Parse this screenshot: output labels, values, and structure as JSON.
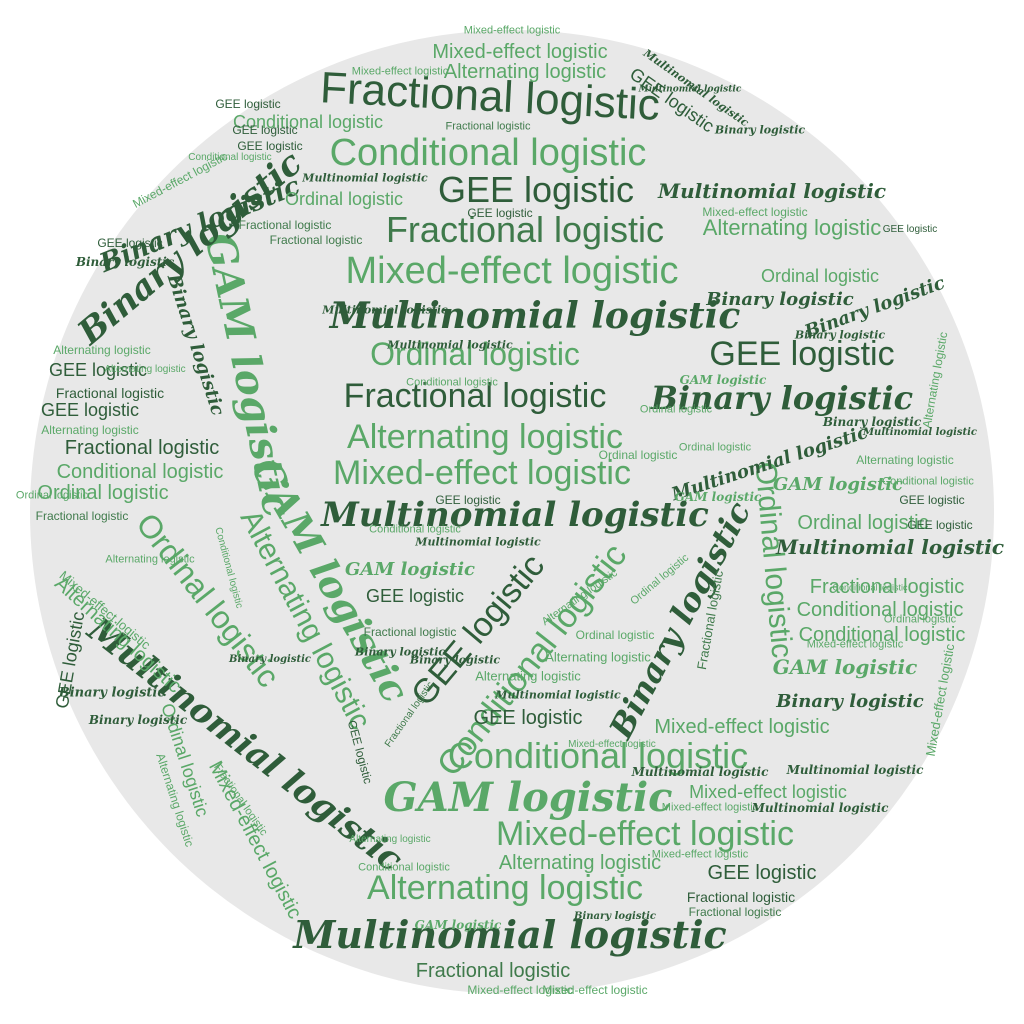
{
  "cloud": {
    "background": "#e8e8e8",
    "colors": {
      "dark": "#2f5d3a",
      "mid": "#3f7a4b",
      "light": "#5aa868"
    },
    "words": [
      "Fractional logistic",
      "Conditional logistic",
      "GEE logistic",
      "Fractional logistic",
      "Mixed-effect logistic",
      "Multinomial logistic",
      "Ordinal logistic",
      "GEE logistic",
      "Fractional logistic",
      "Binary logistic",
      "Alternating logistic",
      "Mixed-effect logistic",
      "Multinomial logistic",
      "Conditional logistic",
      "GAM logistic",
      "Mixed-effect logistic",
      "Alternating logistic",
      "Multinomial logistic",
      "Fractional logistic",
      "GAM logistic",
      "Binary logistic",
      "Multinomial logistic",
      "Ordinal logistic",
      "Alternating logistic",
      "GAM logistic",
      "Binary logistic",
      "GEE logistic",
      "Conditional logistic",
      "Ordinal logistic",
      "Mixed-effect logistic",
      "Alternating logistic",
      "Mixed-effect logistic",
      "Alternating logistic",
      "Multinomial logistic",
      "GEE logistic",
      "Binary logistic",
      "Fractional logistic",
      "Conditional logistic",
      "Conditional logistic",
      "Ordinal logistic",
      "Multinomial logistic",
      "GAM logistic",
      "Binary logistic",
      "Mixed-effect logistic",
      "Mixed-effect logistic",
      "GEE logistic",
      "GEE logistic",
      "Fractional logistic",
      "Conditional logistic",
      "Ordinal logistic",
      "Fractional logistic",
      "Alternating logistic",
      "Mixed-effect logistic",
      "Binary logistic",
      "Binary logistic",
      "Multinomial logistic",
      "Alternating logistic",
      "Conditional logistic",
      "GEE logistic",
      "GEE logistic",
      "Multinomial logistic",
      "Binary logistic",
      "Binary logistic",
      "Ordinal logistic",
      "Alternating logistic",
      "Mixed-effect logistic",
      "Alternating logistic",
      "Fractional logistic",
      "Mixed-effect logistic",
      "Ordinal logistic",
      "Alternating logistic",
      "Mixed-effect logistic",
      "Mixed-effect logistic",
      "Conditional logistic",
      "GEE logistic",
      "Multinomial logistic",
      "GAM logistic",
      "Ordinal logistic",
      "Fractional logistic",
      "Fractional logistic",
      "GEE logistic",
      "Mixed-effect logistic",
      "Binary logistic",
      "Multinomial logistic",
      "GEE logistic",
      "Ordinal logistic",
      "Binary logistic",
      "Conditional logistic",
      "Fractional logistic",
      "Alternating logistic",
      "GEE logistic",
      "Fractional logistic",
      "Ordinal logistic",
      "GEE logistic",
      "Multinomial logistic",
      "Mixed-effect logistic",
      "Alternating logistic",
      "Alternating logistic",
      "Fractional logistic",
      "Mixed-effect logistic",
      "Mixed-effect logistic",
      "GEE logistic",
      "Binary logistic",
      "Multinomial logistic",
      "Binary logistic",
      "Ordinal logistic",
      "Ordinal logistic",
      "Alternating logistic",
      "Alternating logistic",
      "GEE logistic",
      "GAM logistic",
      "Conditional logistic",
      "Binary logistic",
      "Binary logistic",
      "Ordinal logistic",
      "Multinomial logistic",
      "Mixed-effect logistic",
      "Fractional logistic",
      "Conditional logistic",
      "GEE logistic",
      "Ordinal logistic",
      "GEE logistic",
      "GAM logistic",
      "GAM logistic",
      "Mixed-effect logistic",
      "Alternating logistic",
      "Binary logistic",
      "GEE logistic",
      "Fractional logistic",
      "Conditional logistic",
      "Multinomial logistic",
      "Binary logistic",
      "Multinomial logistic",
      "Multinomial logistic",
      "Multinomial logistic",
      "Ordinal logistic",
      "GAM logistic",
      "Multinomial logistic",
      "Fractional logistic",
      "Conditional logistic",
      "Binary logistic",
      "GEE logistic",
      "Alternating logistic",
      "Mixed-effect logistic",
      "Fractional logistic",
      "GEE logistic",
      "Alternating logistic",
      "Conditional logistic"
    ]
  }
}
